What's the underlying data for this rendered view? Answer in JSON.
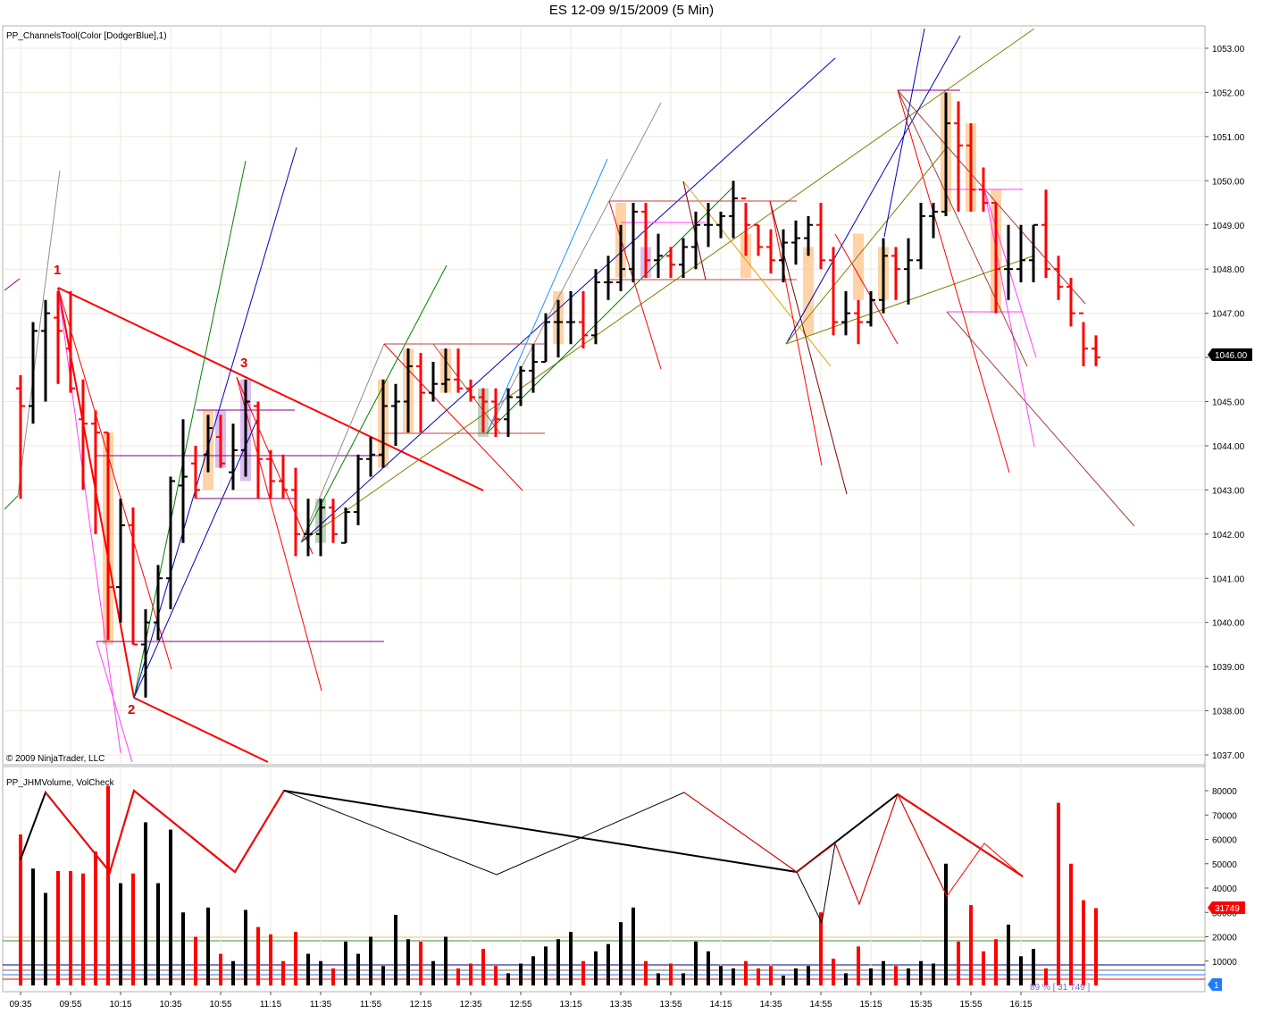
{
  "title": "ES 12-09  9/15/2009 (5 Min)",
  "upper_indicator": "PP_ChannelsTool(Color [DodgerBlue],1)",
  "lower_indicator": "PP_JHMVolume, VolCheck",
  "copyright": "© 2009 NinjaTrader, LLC",
  "price_tag": "1046.00",
  "volume_tag": "31749",
  "stat_text": "89 % [ 31 749 ]",
  "marker_tag": "1",
  "pivot_labels": [
    "1",
    "2",
    "3"
  ],
  "colors": {
    "up": "#000000",
    "down": "#ff0000",
    "highlight": "#ffc890",
    "grid": "#ece8dc"
  },
  "chart_data": {
    "type": "ohlc",
    "price_axis": {
      "min": 1037,
      "max": 1053,
      "ticks": [
        "1037.00",
        "1038.00",
        "1039.00",
        "1040.00",
        "1041.00",
        "1042.00",
        "1043.00",
        "1044.00",
        "1045.00",
        "1046.00",
        "1047.00",
        "1048.00",
        "1049.00",
        "1050.00",
        "1051.00",
        "1052.00",
        "1053.00"
      ]
    },
    "time_ticks": [
      "09:35",
      "09:55",
      "10:15",
      "10:35",
      "10:55",
      "11:15",
      "11:35",
      "11:55",
      "12:15",
      "12:35",
      "12:55",
      "13:15",
      "13:35",
      "13:55",
      "14:15",
      "14:35",
      "14:55",
      "15:15",
      "15:35",
      "15:55",
      "16:15"
    ],
    "volume_axis": {
      "min": 0,
      "max": 80000,
      "ticks": [
        "10000",
        "20000",
        "30000",
        "40000",
        "50000",
        "60000",
        "70000",
        "80000"
      ]
    },
    "bars": [
      {
        "t": "09:25",
        "o": 1045.3,
        "h": 1045.6,
        "l": 1042.8,
        "c": 1044.9,
        "v": 62000
      },
      {
        "t": "09:30",
        "o": 1044.9,
        "h": 1046.8,
        "l": 1044.5,
        "c": 1046.6,
        "v": 48000
      },
      {
        "t": "09:35",
        "o": 1046.6,
        "h": 1047.3,
        "l": 1045.0,
        "c": 1047.0,
        "v": 38000
      },
      {
        "t": "09:40",
        "o": 1046.9,
        "h": 1047.5,
        "l": 1045.4,
        "c": 1046.6,
        "v": 47000
      },
      {
        "t": "09:45",
        "o": 1046.2,
        "h": 1047.5,
        "l": 1045.2,
        "c": 1045.3,
        "v": 47000
      },
      {
        "t": "09:50",
        "o": 1044.6,
        "h": 1045.5,
        "l": 1043.0,
        "c": 1044.5,
        "v": 46000
      },
      {
        "t": "09:55",
        "o": 1044.5,
        "h": 1044.8,
        "l": 1042.0,
        "c": 1044.3,
        "v": 55000
      },
      {
        "t": "10:00",
        "o": 1044.3,
        "h": 1044.3,
        "l": 1039.6,
        "c": 1040.8,
        "v": 82000
      },
      {
        "t": "10:05",
        "o": 1040.8,
        "h": 1042.8,
        "l": 1040.0,
        "c": 1042.2,
        "v": 42000
      },
      {
        "t": "10:10",
        "o": 1042.2,
        "h": 1042.6,
        "l": 1039.5,
        "c": 1039.5,
        "v": 46000
      },
      {
        "t": "10:15",
        "o": 1039.5,
        "h": 1040.3,
        "l": 1038.3,
        "c": 1040.0,
        "v": 67000
      },
      {
        "t": "10:20",
        "o": 1040.0,
        "h": 1041.3,
        "l": 1039.6,
        "c": 1041.0,
        "v": 42000
      },
      {
        "t": "10:25",
        "o": 1041.0,
        "h": 1043.3,
        "l": 1040.3,
        "c": 1043.2,
        "v": 64000
      },
      {
        "t": "10:30",
        "o": 1043.1,
        "h": 1044.6,
        "l": 1041.8,
        "c": 1043.3,
        "v": 30000
      },
      {
        "t": "10:35",
        "o": 1043.6,
        "h": 1044.0,
        "l": 1042.8,
        "c": 1043.0,
        "v": 20000
      },
      {
        "t": "10:40",
        "o": 1043.8,
        "h": 1044.7,
        "l": 1043.4,
        "c": 1044.4,
        "v": 32000
      },
      {
        "t": "10:45",
        "o": 1044.2,
        "h": 1044.7,
        "l": 1043.5,
        "c": 1043.6,
        "v": 13000
      },
      {
        "t": "10:50",
        "o": 1043.4,
        "h": 1044.5,
        "l": 1043.0,
        "c": 1043.9,
        "v": 10000
      },
      {
        "t": "10:55",
        "o": 1043.9,
        "h": 1045.5,
        "l": 1043.3,
        "c": 1045.0,
        "v": 31000
      },
      {
        "t": "11:00",
        "o": 1044.9,
        "h": 1045.0,
        "l": 1042.8,
        "c": 1043.7,
        "v": 24000
      },
      {
        "t": "11:05",
        "o": 1043.7,
        "h": 1043.9,
        "l": 1042.8,
        "c": 1043.2,
        "v": 21000
      },
      {
        "t": "11:10",
        "o": 1043.2,
        "h": 1043.8,
        "l": 1042.8,
        "c": 1043.0,
        "v": 10000
      },
      {
        "t": "11:15",
        "o": 1043.0,
        "h": 1043.5,
        "l": 1041.5,
        "c": 1042.0,
        "v": 22000
      },
      {
        "t": "11:20",
        "o": 1042.0,
        "h": 1042.8,
        "l": 1041.5,
        "c": 1042.0,
        "v": 13000
      },
      {
        "t": "11:25",
        "o": 1042.0,
        "h": 1042.8,
        "l": 1041.5,
        "c": 1042.6,
        "v": 10000
      },
      {
        "t": "11:30",
        "o": 1042.6,
        "h": 1042.8,
        "l": 1041.8,
        "c": 1042.0,
        "v": 7000
      },
      {
        "t": "11:35",
        "o": 1041.8,
        "h": 1042.6,
        "l": 1041.8,
        "c": 1042.5,
        "v": 18000
      },
      {
        "t": "11:40",
        "o": 1042.5,
        "h": 1043.8,
        "l": 1042.2,
        "c": 1043.7,
        "v": 13000
      },
      {
        "t": "11:45",
        "o": 1043.7,
        "h": 1044.2,
        "l": 1043.3,
        "c": 1043.8,
        "v": 20000
      },
      {
        "t": "11:50",
        "o": 1043.8,
        "h": 1045.5,
        "l": 1043.5,
        "c": 1044.9,
        "v": 8000
      },
      {
        "t": "11:55",
        "o": 1044.9,
        "h": 1045.4,
        "l": 1044.0,
        "c": 1045.0,
        "v": 29000
      },
      {
        "t": "12:00",
        "o": 1045.0,
        "h": 1046.2,
        "l": 1044.3,
        "c": 1045.8,
        "v": 19000
      },
      {
        "t": "12:05",
        "o": 1045.8,
        "h": 1046.1,
        "l": 1044.3,
        "c": 1045.2,
        "v": 18000
      },
      {
        "t": "12:10",
        "o": 1045.2,
        "h": 1045.9,
        "l": 1045.0,
        "c": 1045.4,
        "v": 10000
      },
      {
        "t": "12:15",
        "o": 1045.4,
        "h": 1046.2,
        "l": 1045.2,
        "c": 1045.5,
        "v": 20000
      },
      {
        "t": "12:20",
        "o": 1045.5,
        "h": 1046.2,
        "l": 1045.2,
        "c": 1045.3,
        "v": 7000
      },
      {
        "t": "12:25",
        "o": 1045.3,
        "h": 1045.5,
        "l": 1045.0,
        "c": 1045.1,
        "v": 9000
      },
      {
        "t": "12:30",
        "o": 1045.1,
        "h": 1045.3,
        "l": 1044.3,
        "c": 1045.0,
        "v": 15000
      },
      {
        "t": "12:35",
        "o": 1045.0,
        "h": 1045.3,
        "l": 1044.2,
        "c": 1044.6,
        "v": 8000
      },
      {
        "t": "12:40",
        "o": 1044.6,
        "h": 1045.3,
        "l": 1044.2,
        "c": 1045.1,
        "v": 5000
      },
      {
        "t": "12:45",
        "o": 1045.1,
        "h": 1045.8,
        "l": 1044.9,
        "c": 1045.7,
        "v": 9000
      },
      {
        "t": "12:50",
        "o": 1045.7,
        "h": 1046.3,
        "l": 1045.2,
        "c": 1045.9,
        "v": 12000
      },
      {
        "t": "12:55",
        "o": 1045.9,
        "h": 1047.0,
        "l": 1045.9,
        "c": 1046.8,
        "v": 16000
      },
      {
        "t": "13:00",
        "o": 1046.8,
        "h": 1047.3,
        "l": 1046.0,
        "c": 1046.8,
        "v": 19000
      },
      {
        "t": "13:05",
        "o": 1046.8,
        "h": 1047.5,
        "l": 1046.3,
        "c": 1046.8,
        "v": 22000
      },
      {
        "t": "13:10",
        "o": 1046.8,
        "h": 1047.5,
        "l": 1046.2,
        "c": 1046.5,
        "v": 10000
      },
      {
        "t": "13:15",
        "o": 1046.5,
        "h": 1048.0,
        "l": 1046.3,
        "c": 1047.7,
        "v": 14000
      },
      {
        "t": "13:20",
        "o": 1047.7,
        "h": 1048.3,
        "l": 1047.3,
        "c": 1047.7,
        "v": 17000
      },
      {
        "t": "13:25",
        "o": 1047.7,
        "h": 1049.0,
        "l": 1047.5,
        "c": 1048.0,
        "v": 26000
      },
      {
        "t": "13:30",
        "o": 1048.0,
        "h": 1049.5,
        "l": 1047.7,
        "c": 1049.3,
        "v": 32000
      },
      {
        "t": "13:35",
        "o": 1049.3,
        "h": 1049.5,
        "l": 1047.8,
        "c": 1048.2,
        "v": 10000
      },
      {
        "t": "13:40",
        "o": 1048.2,
        "h": 1048.8,
        "l": 1047.8,
        "c": 1048.3,
        "v": 5000
      },
      {
        "t": "13:45",
        "o": 1048.3,
        "h": 1048.5,
        "l": 1047.8,
        "c": 1048.1,
        "v": 9000
      },
      {
        "t": "13:50",
        "o": 1048.1,
        "h": 1048.7,
        "l": 1047.8,
        "c": 1048.5,
        "v": 5000
      },
      {
        "t": "13:55",
        "o": 1048.5,
        "h": 1049.3,
        "l": 1048.0,
        "c": 1049.0,
        "v": 18000
      },
      {
        "t": "14:00",
        "o": 1049.0,
        "h": 1049.5,
        "l": 1048.5,
        "c": 1049.0,
        "v": 14000
      },
      {
        "t": "14:05",
        "o": 1049.0,
        "h": 1049.3,
        "l": 1048.7,
        "c": 1049.2,
        "v": 8000
      },
      {
        "t": "14:10",
        "o": 1049.2,
        "h": 1050.0,
        "l": 1048.7,
        "c": 1049.6,
        "v": 7000
      },
      {
        "t": "14:15",
        "o": 1049.6,
        "h": 1049.5,
        "l": 1048.3,
        "c": 1049.0,
        "v": 10000
      },
      {
        "t": "14:20",
        "o": 1049.0,
        "h": 1049.0,
        "l": 1048.3,
        "c": 1048.5,
        "v": 7000
      },
      {
        "t": "14:25",
        "o": 1048.5,
        "h": 1048.9,
        "l": 1047.9,
        "c": 1048.2,
        "v": 8000
      },
      {
        "t": "14:30",
        "o": 1048.2,
        "h": 1048.9,
        "l": 1047.7,
        "c": 1048.6,
        "v": 4000
      },
      {
        "t": "14:35",
        "o": 1048.6,
        "h": 1049.1,
        "l": 1048.1,
        "c": 1048.7,
        "v": 7000
      },
      {
        "t": "14:40",
        "o": 1048.7,
        "h": 1049.2,
        "l": 1048.3,
        "c": 1049.0,
        "v": 8000
      },
      {
        "t": "14:45",
        "o": 1049.0,
        "h": 1049.5,
        "l": 1048.0,
        "c": 1048.2,
        "v": 30000
      },
      {
        "t": "14:50",
        "o": 1048.2,
        "h": 1048.5,
        "l": 1046.5,
        "c": 1046.8,
        "v": 11000
      },
      {
        "t": "14:55",
        "o": 1046.8,
        "h": 1047.5,
        "l": 1046.5,
        "c": 1047.0,
        "v": 5000
      },
      {
        "t": "15:00",
        "o": 1047.0,
        "h": 1047.3,
        "l": 1046.3,
        "c": 1046.8,
        "v": 16000
      },
      {
        "t": "15:05",
        "o": 1046.8,
        "h": 1047.5,
        "l": 1046.7,
        "c": 1047.3,
        "v": 7000
      },
      {
        "t": "15:10",
        "o": 1047.3,
        "h": 1048.7,
        "l": 1047.0,
        "c": 1048.3,
        "v": 10000
      },
      {
        "t": "15:15",
        "o": 1048.3,
        "h": 1048.5,
        "l": 1047.3,
        "c": 1048.0,
        "v": 8000
      },
      {
        "t": "15:20",
        "o": 1048.0,
        "h": 1048.7,
        "l": 1047.2,
        "c": 1048.2,
        "v": 7000
      },
      {
        "t": "15:25",
        "o": 1048.2,
        "h": 1049.5,
        "l": 1048.0,
        "c": 1049.2,
        "v": 10000
      },
      {
        "t": "15:30",
        "o": 1049.2,
        "h": 1049.5,
        "l": 1048.7,
        "c": 1049.3,
        "v": 9000
      },
      {
        "t": "15:35",
        "o": 1049.3,
        "h": 1052.0,
        "l": 1049.2,
        "c": 1051.3,
        "v": 50000
      },
      {
        "t": "15:40",
        "o": 1051.3,
        "h": 1051.8,
        "l": 1049.3,
        "c": 1050.8,
        "v": 18000
      },
      {
        "t": "15:45",
        "o": 1050.8,
        "h": 1051.3,
        "l": 1049.3,
        "c": 1049.8,
        "v": 33000
      },
      {
        "t": "15:50",
        "o": 1049.8,
        "h": 1050.3,
        "l": 1049.3,
        "c": 1049.5,
        "v": 14000
      },
      {
        "t": "15:55",
        "o": 1049.5,
        "h": 1049.5,
        "l": 1047.0,
        "c": 1048.0,
        "v": 19000
      },
      {
        "t": "16:00",
        "o": 1048.0,
        "h": 1049.0,
        "l": 1047.3,
        "c": 1048.0,
        "v": 25000
      },
      {
        "t": "16:05",
        "o": 1048.0,
        "h": 1049.0,
        "l": 1047.7,
        "c": 1048.2,
        "v": 12000
      },
      {
        "t": "16:10",
        "o": 1048.2,
        "h": 1049.0,
        "l": 1047.7,
        "c": 1049.0,
        "v": 15000
      },
      {
        "t": "16:15",
        "o": 1049.0,
        "h": 1049.8,
        "l": 1047.8,
        "c": 1048.0,
        "v": 7000
      },
      {
        "t": "16:20",
        "o": 1048.0,
        "h": 1048.3,
        "l": 1047.3,
        "c": 1047.6,
        "v": 75000
      },
      {
        "t": "16:25",
        "o": 1047.6,
        "h": 1047.8,
        "l": 1046.7,
        "c": 1047.0,
        "v": 50000
      },
      {
        "t": "16:30",
        "o": 1047.0,
        "h": 1046.8,
        "l": 1045.8,
        "c": 1046.2,
        "v": 35000
      },
      {
        "t": "16:35",
        "o": 1046.2,
        "h": 1046.5,
        "l": 1045.8,
        "c": 1046.0,
        "v": 31749
      }
    ]
  }
}
